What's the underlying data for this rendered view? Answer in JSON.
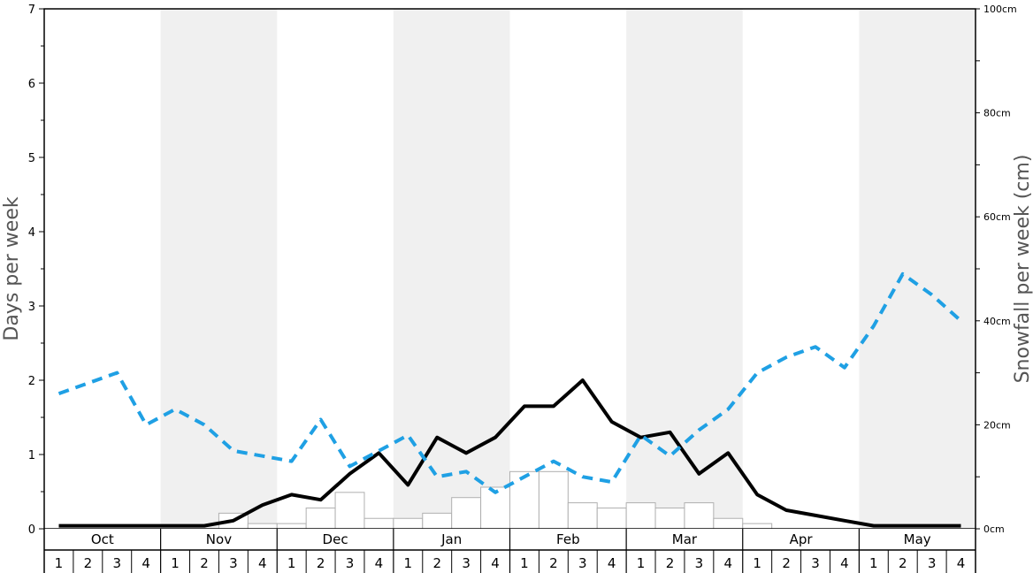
{
  "chart_data": {
    "type": "bar+line",
    "months": [
      "Oct",
      "Nov",
      "Dec",
      "Jan",
      "Feb",
      "Mar",
      "Apr",
      "May"
    ],
    "week_labels": [
      "1",
      "2",
      "3",
      "4"
    ],
    "left_axis": {
      "title": "Days per week",
      "ylim": [
        0,
        7
      ],
      "tick_labels": [
        "0",
        "1",
        "2",
        "3",
        "4",
        "5",
        "6",
        "7"
      ]
    },
    "right_axis": {
      "title": "Snowfall per week (cm)",
      "ylim": [
        0,
        100
      ],
      "tick_labels": [
        "0cm",
        "20cm",
        "40cm",
        "60cm",
        "80cm",
        "100cm"
      ]
    },
    "series": [
      {
        "kind": "bar",
        "axis": "right",
        "values": [
          0,
          0,
          0,
          0,
          0,
          0,
          3,
          1,
          1,
          4,
          7,
          2,
          2,
          3,
          6,
          8,
          11,
          11,
          5,
          4,
          5,
          4,
          5,
          2,
          1,
          0,
          0,
          0,
          0,
          0,
          0,
          0
        ]
      },
      {
        "kind": "line",
        "axis": "left",
        "style": "solid",
        "values": [
          0.04,
          0.04,
          0.04,
          0.04,
          0.04,
          0.04,
          0.11,
          0.32,
          0.46,
          0.39,
          0.74,
          1.02,
          0.59,
          1.23,
          1.02,
          1.23,
          1.65,
          1.65,
          2.0,
          1.44,
          1.23,
          1.3,
          0.74,
          1.02,
          0.46,
          0.25,
          0.18,
          0.11,
          0.04,
          0.04,
          0.04,
          0.04
        ]
      },
      {
        "kind": "line",
        "axis": "right",
        "style": "dashed",
        "values": [
          26,
          28,
          30,
          20,
          23,
          20,
          15,
          14,
          13,
          21,
          12,
          15,
          18,
          10,
          11,
          7,
          10,
          13,
          10,
          9,
          18,
          14,
          19,
          23,
          30,
          33,
          35,
          31,
          39,
          49,
          45,
          40
        ]
      }
    ],
    "colors": {
      "bar_fill": "#ffffff",
      "bar_stroke": "#b0b0b0",
      "solid_line": "#000000",
      "dashed_line": "#1fa0e4",
      "band_fill": "#f0f0f0"
    }
  }
}
